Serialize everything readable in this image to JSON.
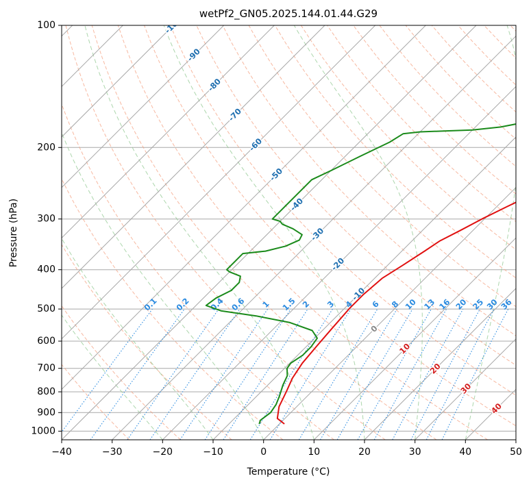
{
  "chart_data": {
    "type": "line",
    "title": "wetPf2_GN05.2025.144.01.44.G29",
    "xlabel": "Temperature (°C)",
    "ylabel": "Pressure (hPa)",
    "xlim": [
      -40,
      50
    ],
    "ylim": [
      1050,
      100
    ],
    "y_scale": "log",
    "grid": true,
    "x_ticks": [
      -40,
      -30,
      -20,
      -10,
      0,
      10,
      20,
      30,
      40,
      50
    ],
    "y_ticks": [
      100,
      200,
      300,
      400,
      500,
      600,
      700,
      800,
      900,
      1000
    ],
    "series": [
      {
        "color": "#e01010",
        "points": [
          [
            1.0,
            960
          ],
          [
            -1.5,
            930
          ],
          [
            -3.5,
            870
          ],
          [
            -5.0,
            800
          ],
          [
            -6.5,
            740
          ],
          [
            -7.5,
            680
          ],
          [
            -8.0,
            620
          ],
          [
            -8.5,
            560
          ],
          [
            -9.0,
            500
          ],
          [
            -9.0,
            460
          ],
          [
            -8.5,
            420
          ],
          [
            -7.0,
            390
          ],
          [
            -5.5,
            360
          ],
          [
            -4.5,
            340
          ],
          [
            -2.5,
            320
          ],
          [
            -0.5,
            300
          ],
          [
            2.0,
            280
          ],
          [
            4.5,
            262
          ],
          [
            6.5,
            245
          ],
          [
            8.5,
            225
          ],
          [
            10.5,
            205
          ],
          [
            12.5,
            185
          ],
          [
            14.0,
            170
          ],
          [
            16.0,
            160
          ],
          [
            17.5,
            150
          ],
          [
            19.0,
            142
          ],
          [
            20.5,
            133
          ],
          [
            21.5,
            126
          ],
          [
            23.0,
            120
          ],
          [
            24.5,
            113
          ],
          [
            25.5,
            108
          ],
          [
            27.0,
            100
          ]
        ]
      },
      {
        "color": "#1a8a1a",
        "points": [
          [
            -4.0,
            960
          ],
          [
            -4.5,
            940
          ],
          [
            -4.0,
            900
          ],
          [
            -4.5,
            860
          ],
          [
            -5.5,
            820
          ],
          [
            -7.0,
            770
          ],
          [
            -8.0,
            730
          ],
          [
            -9.5,
            700
          ],
          [
            -9.8,
            680
          ],
          [
            -9.0,
            650
          ],
          [
            -9.0,
            620
          ],
          [
            -9.5,
            590
          ],
          [
            -12,
            565
          ],
          [
            -18,
            540
          ],
          [
            -26,
            520
          ],
          [
            -34,
            505
          ],
          [
            -38,
            490
          ],
          [
            -37.5,
            470
          ],
          [
            -36,
            450
          ],
          [
            -36,
            430
          ],
          [
            -37,
            415
          ],
          [
            -40,
            405
          ],
          [
            -41,
            400
          ],
          [
            -41,
            365
          ],
          [
            -37,
            360
          ],
          [
            -34,
            350
          ],
          [
            -32.5,
            338
          ],
          [
            -33,
            328
          ],
          [
            -36,
            317
          ],
          [
            -39,
            309
          ],
          [
            -40,
            304
          ],
          [
            -42,
            300
          ],
          [
            -42,
            240
          ],
          [
            -40,
            228
          ],
          [
            -37,
            210
          ],
          [
            -34,
            194
          ],
          [
            -33,
            185
          ],
          [
            -30,
            183
          ],
          [
            -25,
            182
          ],
          [
            -20,
            181
          ],
          [
            -15,
            178
          ],
          [
            -10,
            172
          ],
          [
            -8.5,
            165
          ],
          [
            -9.5,
            158
          ],
          [
            -9.5,
            152
          ],
          [
            -7,
            145
          ],
          [
            -4,
            140
          ],
          [
            -1,
            133
          ],
          [
            1,
            127
          ],
          [
            2.5,
            120
          ],
          [
            4,
            113
          ],
          [
            5.5,
            108
          ],
          [
            7,
            103
          ],
          [
            8,
            100
          ]
        ]
      }
    ],
    "isotherm_labels": [
      "-100",
      "-90",
      "-80",
      "-70",
      "-60",
      "-50",
      "-40",
      "-30",
      "-20",
      "-10",
      "0",
      "10",
      "20",
      "30",
      "40"
    ],
    "mixing_ratio_labels": [
      "0.1",
      "0.2",
      "0.4",
      "0.6",
      "1",
      "1.5",
      "2",
      "3",
      "4",
      "6",
      "8",
      "10",
      "13",
      "16",
      "20",
      "25",
      "30",
      "36"
    ],
    "colors": {
      "temperature": "#e01010",
      "dewpoint": "#1a8a1a",
      "isotherm_cold": "#1f6fb0",
      "isotherm_zero": "#888888",
      "isotherm_warm": "#d42020",
      "mixing_ratio": "#2b8be0",
      "dry_adiabat": "#f4a080",
      "moist_adiabat": "#90c890",
      "grid": "#a8a8a8"
    }
  }
}
